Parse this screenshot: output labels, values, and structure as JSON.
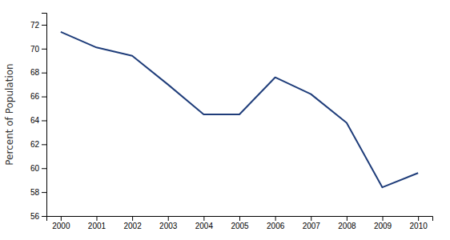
{
  "chart_data": {
    "type": "line",
    "x": [
      2000,
      2001,
      2002,
      2003,
      2004,
      2005,
      2006,
      2007,
      2008,
      2009,
      2010
    ],
    "values": [
      71.4,
      70.1,
      69.4,
      67.0,
      64.5,
      64.5,
      67.6,
      66.2,
      63.8,
      58.4,
      59.6
    ],
    "color": "#1f3d7a",
    "ylabel": "Percent of Population",
    "xlim": [
      1999.6,
      2010.4
    ],
    "ylim": [
      56,
      73
    ],
    "xticks": [
      2000,
      2001,
      2002,
      2003,
      2004,
      2005,
      2006,
      2007,
      2008,
      2009,
      2010
    ],
    "yticks": [
      56,
      58,
      60,
      62,
      64,
      66,
      68,
      70,
      72
    ]
  }
}
